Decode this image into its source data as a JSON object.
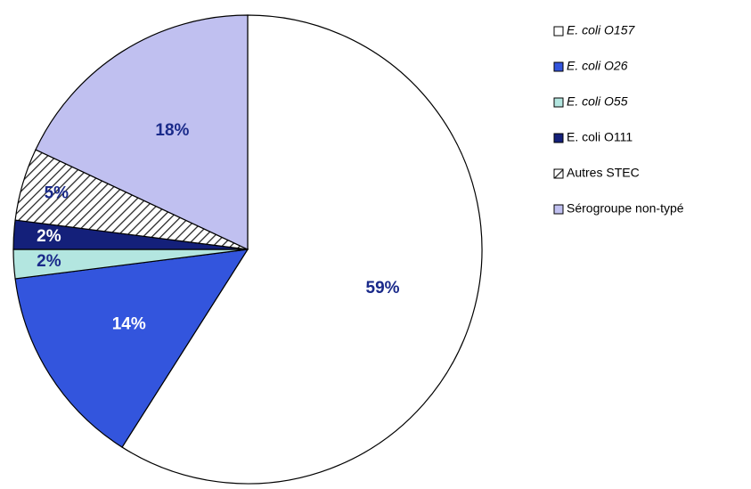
{
  "chart_data": {
    "type": "pie",
    "categories": [
      "E. coli O157",
      "E. coli O26",
      "E. coli O55",
      "E. coli O111",
      "Autres STEC",
      "Sérogroupe non-typé"
    ],
    "values": [
      59,
      14,
      2,
      2,
      5,
      18
    ],
    "value_labels": [
      "59%",
      "14%",
      "2%",
      "2%",
      "5%",
      "18%"
    ],
    "colors": [
      "#ffffff",
      "#3355dd",
      "#b3e6e0",
      "#14207a",
      "#ffffff",
      "#c0c0f0"
    ],
    "hatch": [
      false,
      false,
      false,
      false,
      true,
      false
    ],
    "legend_italic": [
      true,
      true,
      true,
      false,
      false,
      false
    ],
    "legend": "right"
  }
}
